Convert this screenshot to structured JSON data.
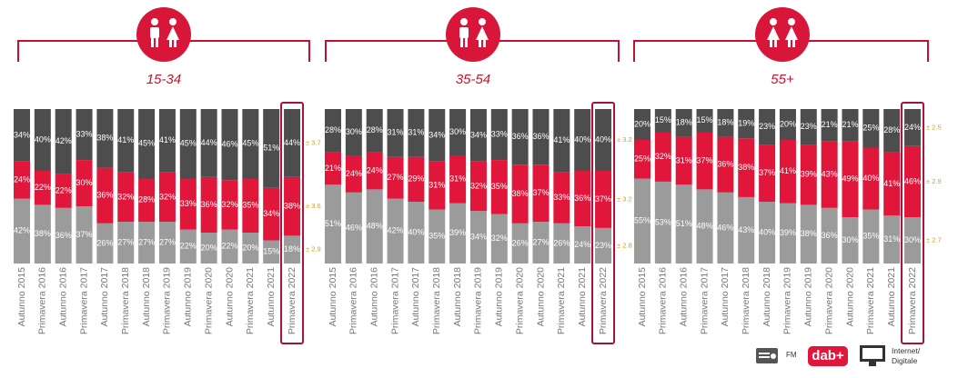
{
  "chart_data": [
    {
      "type": "bar",
      "stacked": true,
      "title": "15-34",
      "ylim": [
        0,
        100
      ],
      "categories": [
        "Autunno 2015",
        "Primavera 2016",
        "Autunno 2016",
        "Primavera 2017",
        "Autunno 2017",
        "Primavera 2018",
        "Autunno 2018",
        "Primavera 2019",
        "Autunno 2019",
        "Primavera 2020",
        "Autunno 2020",
        "Primavera 2021",
        "Autunno 2021",
        "Primavera 2022"
      ],
      "series": [
        {
          "name": "FM",
          "color": "#9b9b9b",
          "annotation": "± 2.9",
          "values": [
            42,
            38,
            36,
            37,
            26,
            27,
            27,
            27,
            22,
            20,
            22,
            20,
            15,
            18
          ],
          "value_labels": [
            "42%",
            "38%",
            "36%",
            "37%",
            "26%",
            "27%",
            "27%",
            "27%",
            "22%",
            "20%",
            "22%",
            "20%",
            "15%",
            "18%"
          ]
        },
        {
          "name": "dab+",
          "color": "#e0163a",
          "annotation": "± 3.6",
          "values": [
            24,
            22,
            22,
            30,
            36,
            32,
            28,
            32,
            33,
            36,
            32,
            35,
            34,
            38
          ],
          "value_labels": [
            "24%",
            "22%",
            "22%",
            "30%",
            "36%",
            "32%",
            "28%",
            "32%",
            "33%",
            "36%",
            "32%",
            "35%",
            "34%",
            "38%"
          ]
        },
        {
          "name": "Internet/ Digitale",
          "color": "#4d4d4d",
          "annotation": "± 3.7",
          "values": [
            34,
            40,
            42,
            33,
            38,
            41,
            45,
            41,
            45,
            44,
            46,
            45,
            51,
            44
          ],
          "value_labels": [
            "34%",
            "40%",
            "42%",
            "33%",
            "38%",
            "41%",
            "45%",
            "41%",
            "45%",
            "44%",
            "46%",
            "45%",
            "51%",
            "44%"
          ]
        }
      ]
    },
    {
      "type": "bar",
      "stacked": true,
      "title": "35-54",
      "ylim": [
        0,
        100
      ],
      "categories": [
        "Autunno 2015",
        "Primavera 2016",
        "Autunno 2016",
        "Primavera 2017",
        "Autunno 2017",
        "Primavera 2018",
        "Autunno 2018",
        "Primavera 2019",
        "Autunno 2019",
        "Primavera 2020",
        "Autunno 2020",
        "Primavera 2021",
        "Autunno 2021",
        "Primavera 2022"
      ],
      "series": [
        {
          "color": "#9b9b9b",
          "annotation": "± 2.8",
          "values": [
            51,
            46,
            48,
            42,
            40,
            35,
            39,
            34,
            32,
            26,
            27,
            26,
            24,
            23
          ],
          "value_labels": [
            "51%",
            "46%",
            "48%",
            "42%",
            "40%",
            "35%",
            "39%",
            "34%",
            "32%",
            "26%",
            "27%",
            "26%",
            "24%",
            "23%"
          ]
        },
        {
          "color": "#e0163a",
          "annotation": "± 3.2",
          "values": [
            21,
            24,
            24,
            27,
            29,
            31,
            31,
            32,
            35,
            38,
            37,
            33,
            36,
            37
          ],
          "value_labels": [
            "21%",
            "24%",
            "24%",
            "27%",
            "29%",
            "31%",
            "31%",
            "32%",
            "35%",
            "38%",
            "37%",
            "33%",
            "36%",
            "37%"
          ]
        },
        {
          "color": "#4d4d4d",
          "annotation": "± 3.2",
          "values": [
            28,
            30,
            28,
            31,
            31,
            34,
            30,
            34,
            33,
            36,
            36,
            41,
            40,
            40
          ],
          "value_labels": [
            "28%",
            "30%",
            "28%",
            "31%",
            "31%",
            "34%",
            "30%",
            "34%",
            "33%",
            "36%",
            "36%",
            "41%",
            "40%",
            "40%"
          ]
        }
      ]
    },
    {
      "type": "bar",
      "stacked": true,
      "title": "55+",
      "ylim": [
        0,
        100
      ],
      "categories": [
        "Autunno 2015",
        "Primavera 2016",
        "Autunno 2016",
        "Primavera 2017",
        "Autunno 2017",
        "Primavera 2018",
        "Autunno 2018",
        "Primavera 2019",
        "Autunno 2019",
        "Primavera 2020",
        "Autunno 2020",
        "Primavera 2021",
        "Autunno 2021",
        "Primavera 2022"
      ],
      "series": [
        {
          "color": "#9b9b9b",
          "annotation": "± 2.7",
          "values": [
            55,
            53,
            51,
            48,
            46,
            43,
            40,
            39,
            38,
            36,
            30,
            35,
            31,
            30
          ],
          "value_labels": [
            "55%",
            "53%",
            "51%",
            "48%",
            "46%",
            "43%",
            "40%",
            "39%",
            "38%",
            "36%",
            "30%",
            "35%",
            "31%",
            "30%"
          ]
        },
        {
          "color": "#e0163a",
          "annotation": "± 2.9",
          "values": [
            25,
            32,
            31,
            37,
            36,
            38,
            37,
            41,
            39,
            43,
            49,
            40,
            41,
            46
          ],
          "value_labels": [
            "25%",
            "32%",
            "31%",
            "37%",
            "36%",
            "38%",
            "37%",
            "41%",
            "39%",
            "43%",
            "49%",
            "40%",
            "41%",
            "46%"
          ]
        },
        {
          "color": "#4d4d4d",
          "annotation": "± 2.5",
          "values": [
            20,
            15,
            18,
            15,
            18,
            19,
            23,
            20,
            23,
            21,
            21,
            25,
            28,
            24
          ],
          "value_labels": [
            "20%",
            "15%",
            "18%",
            "15%",
            "18%",
            "19%",
            "23%",
            "20%",
            "23%",
            "21%",
            "21%",
            "25%",
            "28%",
            "24%"
          ]
        }
      ]
    }
  ]
}
